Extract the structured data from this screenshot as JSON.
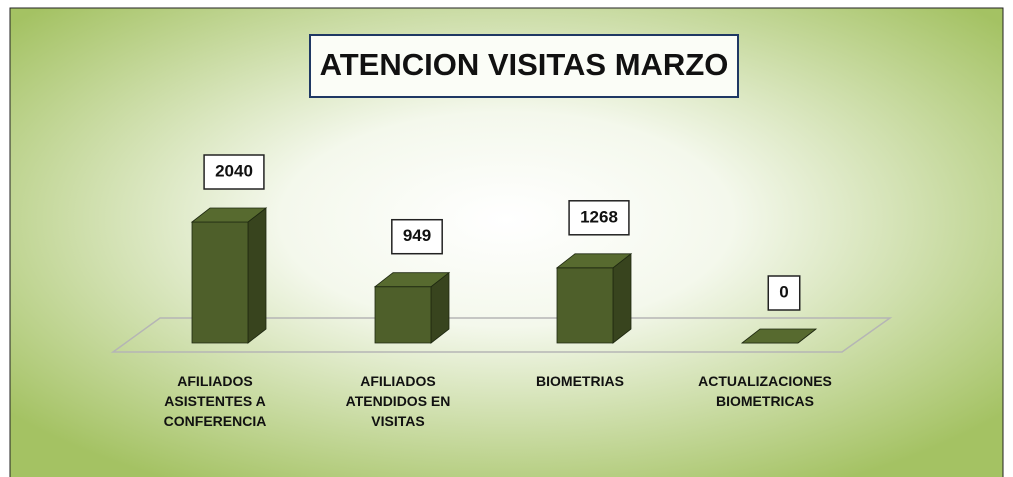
{
  "chart_data": {
    "type": "bar3d",
    "title": "ATENCION VISITAS MARZO",
    "categories": [
      "AFILIADOS ASISTENTES A CONFERENCIA",
      "AFILIADOS ATENDIDOS EN VISITAS",
      "BIOMETRIAS",
      "ACTUALIZACIONES BIOMETRICAS"
    ],
    "values": [
      2040,
      949,
      1268,
      0
    ],
    "color": "#4e5f2a"
  }
}
